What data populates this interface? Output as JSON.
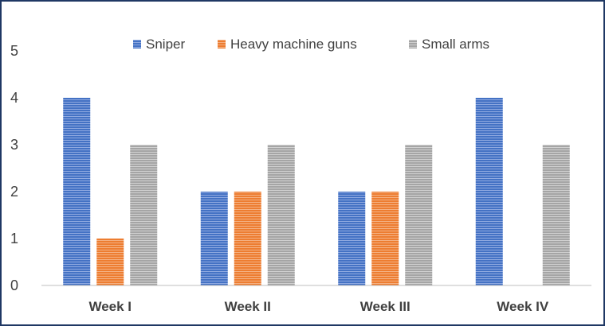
{
  "chart_data": {
    "type": "bar",
    "categories": [
      "Week I",
      "Week II",
      "Week III",
      "Week IV"
    ],
    "series": [
      {
        "name": "Sniper",
        "values": [
          4,
          2,
          2,
          4
        ],
        "color": "#4472c4"
      },
      {
        "name": "Heavy machine guns",
        "values": [
          1,
          2,
          2,
          0
        ],
        "color": "#ed7d31"
      },
      {
        "name": "Small arms",
        "values": [
          3,
          3,
          3,
          3
        ],
        "color": "#a5a5a5"
      }
    ],
    "title": "",
    "xlabel": "",
    "ylabel": "",
    "ylim": [
      0,
      5
    ],
    "yticks": [
      "0",
      "1",
      "2",
      "3",
      "4",
      "5"
    ],
    "grid": false,
    "legend_position": "top"
  }
}
